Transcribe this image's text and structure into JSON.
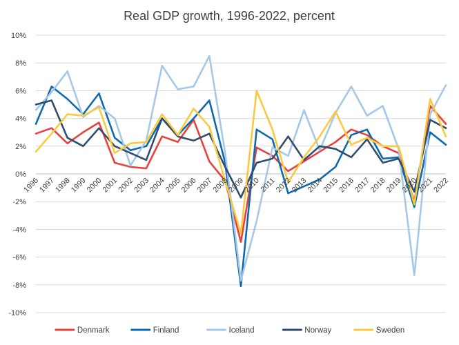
{
  "chart_data": {
    "type": "line",
    "title": "Real GDP growth, 1996-2022, percent",
    "xlabel": "",
    "ylabel": "",
    "x": [
      "1996",
      "1997",
      "1998",
      "1999",
      "2000",
      "2001",
      "2002",
      "2003",
      "2004",
      "2005",
      "2006",
      "2007",
      "2008",
      "2009",
      "2010",
      "2011",
      "2012",
      "2013",
      "2014",
      "2015",
      "2016",
      "2017",
      "2018",
      "2019",
      "2020",
      "2021",
      "2022"
    ],
    "ylim": [
      -10,
      10
    ],
    "yticks": [
      -10,
      -8,
      -6,
      -4,
      -2,
      0,
      2,
      4,
      6,
      8,
      10
    ],
    "ytick_labels": [
      "-10%",
      "-8%",
      "-6%",
      "-4%",
      "-2%",
      "0%",
      "2%",
      "4%",
      "6%",
      "8%",
      "10%"
    ],
    "grid": true,
    "legend_position": "bottom",
    "series": [
      {
        "name": "Denmark",
        "color": "#e8413c",
        "values": [
          2.9,
          3.3,
          2.2,
          3.0,
          3.7,
          0.8,
          0.5,
          0.4,
          2.7,
          2.3,
          3.9,
          0.9,
          -0.5,
          -4.9,
          1.9,
          1.3,
          0.2,
          0.9,
          1.6,
          2.3,
          3.2,
          2.8,
          2.0,
          1.5,
          -2.0,
          4.9,
          3.6
        ]
      },
      {
        "name": "Finland",
        "color": "#0e6aad",
        "values": [
          3.6,
          6.3,
          5.4,
          4.3,
          5.8,
          2.6,
          1.7,
          2.0,
          4.0,
          2.8,
          4.0,
          5.3,
          0.8,
          -8.1,
          3.2,
          2.5,
          -1.4,
          -0.9,
          -0.4,
          0.5,
          2.8,
          3.2,
          1.1,
          1.2,
          -2.4,
          3.0,
          2.1
        ]
      },
      {
        "name": "Iceland",
        "color": "#a6c8e8",
        "values": [
          4.6,
          5.9,
          7.4,
          4.1,
          4.9,
          4.0,
          0.6,
          2.4,
          7.8,
          6.1,
          6.3,
          8.5,
          1.5,
          -7.7,
          -3.4,
          1.9,
          1.3,
          4.6,
          1.7,
          4.4,
          6.3,
          4.2,
          4.9,
          1.8,
          -7.3,
          4.3,
          6.4
        ]
      },
      {
        "name": "Norway",
        "color": "#2e4d6f",
        "values": [
          5.0,
          5.3,
          2.6,
          2.0,
          3.3,
          2.0,
          1.5,
          1.0,
          4.0,
          2.7,
          2.4,
          2.9,
          0.5,
          -1.7,
          0.8,
          1.1,
          2.7,
          1.0,
          2.0,
          1.8,
          1.2,
          2.5,
          0.8,
          1.1,
          -1.3,
          3.9,
          3.3
        ]
      },
      {
        "name": "Sweden",
        "color": "#fbc940",
        "values": [
          1.6,
          2.9,
          4.3,
          4.2,
          4.8,
          1.5,
          2.2,
          2.3,
          4.3,
          2.8,
          4.7,
          3.4,
          -0.5,
          -4.3,
          6.0,
          3.2,
          -0.6,
          1.2,
          2.7,
          4.5,
          2.1,
          2.6,
          2.0,
          2.0,
          -2.2,
          5.4,
          2.7
        ]
      }
    ]
  }
}
